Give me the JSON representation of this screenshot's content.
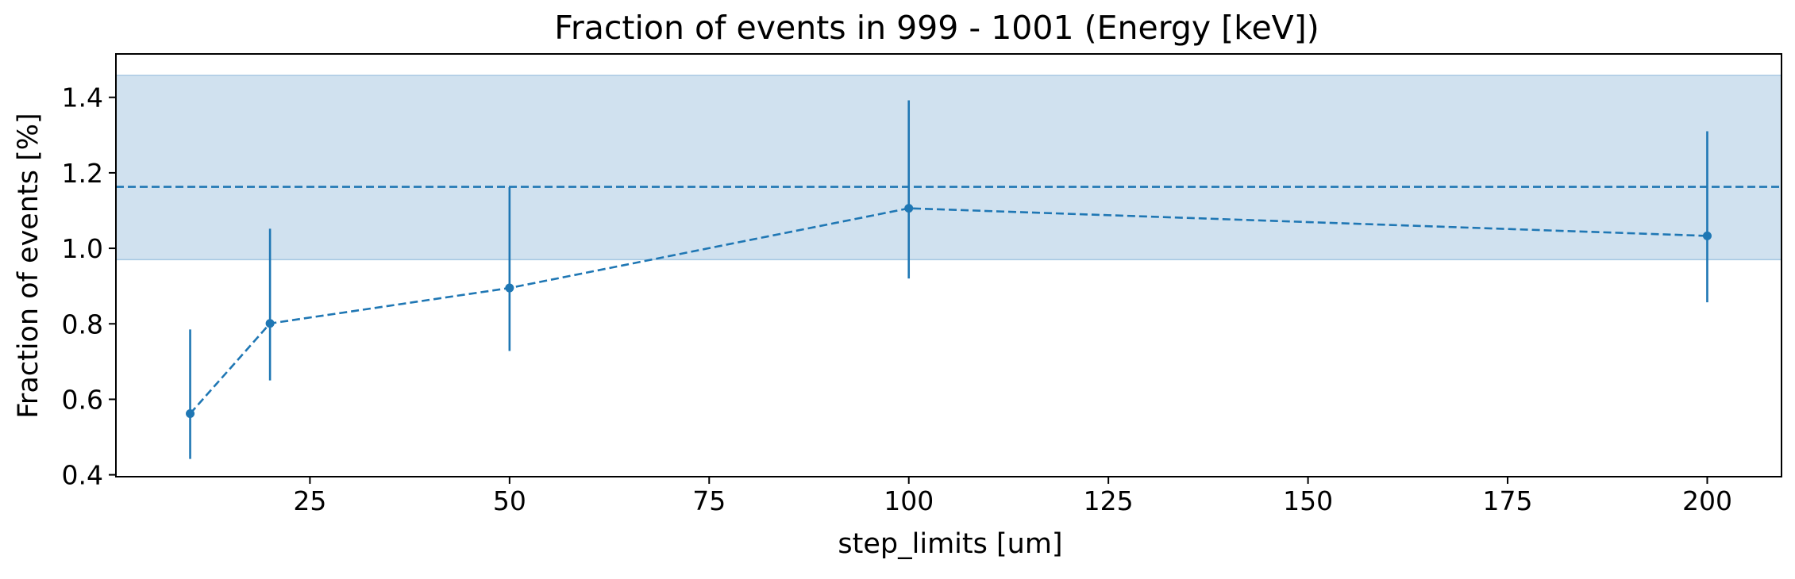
{
  "chart_data": {
    "type": "line",
    "title": "Fraction of events in 999 - 1001 (Energy [keV])",
    "xlabel": "step_limits [um]",
    "ylabel": "Fraction of events [%]",
    "xlim": [
      0.7,
      209.3
    ],
    "ylim": [
      0.395,
      1.515
    ],
    "x_ticks": [
      25,
      50,
      75,
      100,
      125,
      150,
      175,
      200
    ],
    "y_ticks": [
      0.4,
      0.6,
      0.8,
      1.0,
      1.2,
      1.4
    ],
    "x_tick_labels": [
      "25",
      "50",
      "75",
      "100",
      "125",
      "150",
      "175",
      "200"
    ],
    "y_tick_labels": [
      "0.4",
      "0.6",
      "0.8",
      "1.0",
      "1.2",
      "1.4"
    ],
    "grid": false,
    "series": [
      {
        "x": [
          10,
          20,
          50,
          100,
          200
        ],
        "y": [
          0.562,
          0.801,
          0.895,
          1.106,
          1.033
        ],
        "yerr_low": [
          0.442,
          0.65,
          0.728,
          0.92,
          0.857
        ],
        "yerr_high": [
          0.785,
          1.052,
          1.162,
          1.392,
          1.31
        ],
        "line_style": "dashed",
        "marker": "circle",
        "color": "#1f77b4"
      }
    ],
    "reference": {
      "value": 1.163,
      "band_low": 0.97,
      "band_high": 1.458,
      "line_style": "dashed",
      "color": "#1f77b4",
      "band_color": "#d0e1ef"
    }
  }
}
